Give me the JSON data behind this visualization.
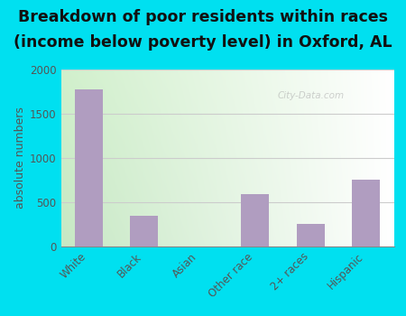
{
  "categories": [
    "White",
    "Black",
    "Asian",
    "Other race",
    "2+ races",
    "Hispanic"
  ],
  "values": [
    1780,
    350,
    0,
    590,
    260,
    760
  ],
  "bar_color": "#b09dc0",
  "title_line1": "Breakdown of poor residents within races",
  "title_line2": "(income below poverty level) in Oxford, AL",
  "ylabel": "absolute numbers",
  "ylim": [
    0,
    2000
  ],
  "yticks": [
    0,
    500,
    1000,
    1500,
    2000
  ],
  "bg_outer": "#00e0f0",
  "title_fontsize": 12.5,
  "ylabel_fontsize": 9,
  "tick_fontsize": 8.5,
  "watermark": "City-Data.com",
  "grid_color": "#cccccc",
  "bg_left_color": "#d0eec0",
  "bg_right_color": "#f8fdf8"
}
